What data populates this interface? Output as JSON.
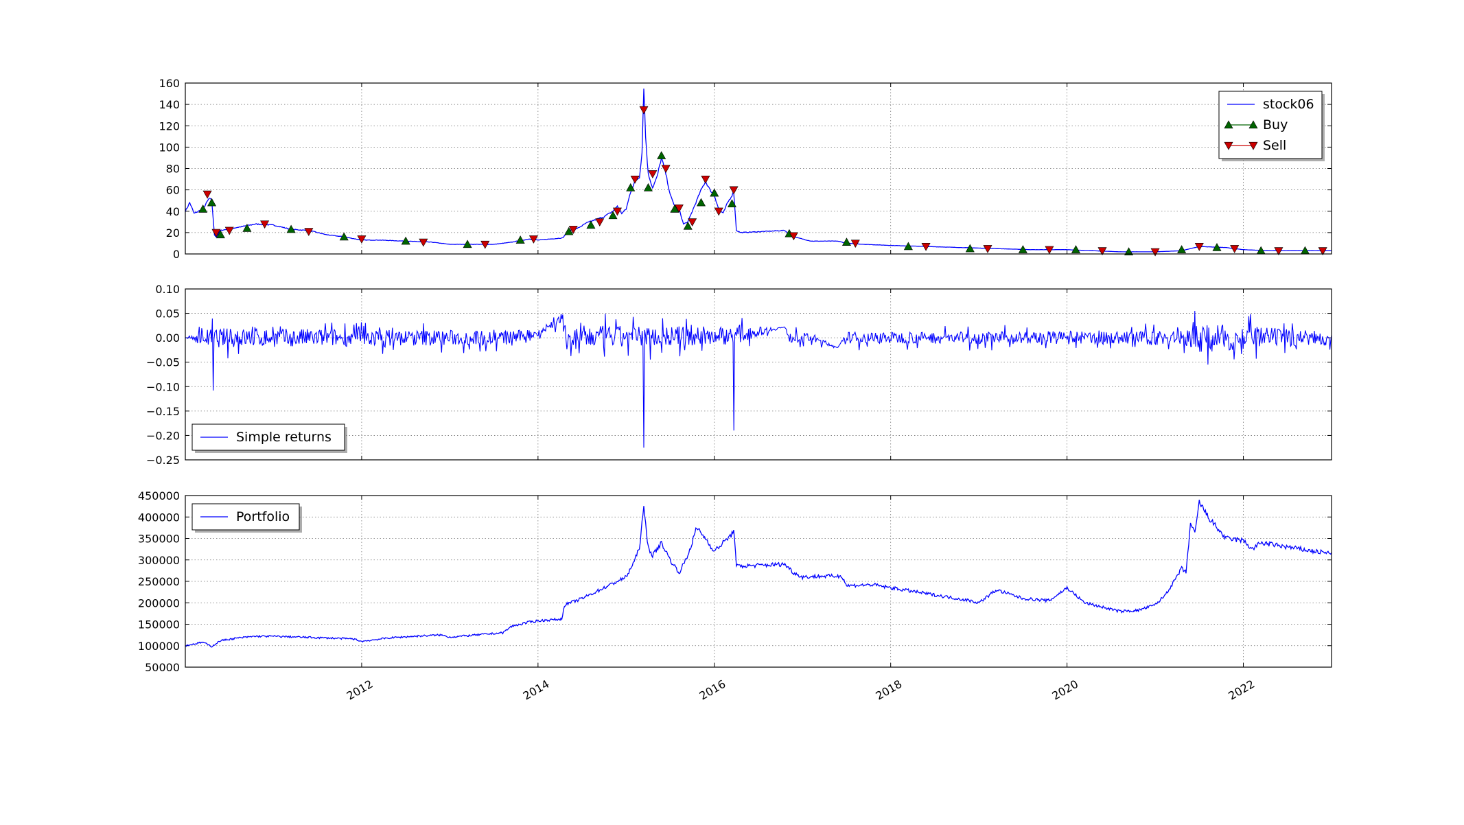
{
  "chart_data": [
    {
      "type": "line",
      "x_unit": "year",
      "xlim": [
        2010.0,
        2023.0
      ],
      "ylim": [
        0,
        160
      ],
      "yticks": [
        0,
        20,
        40,
        60,
        80,
        100,
        120,
        140,
        160
      ],
      "ytick_labels": [
        "0",
        "20",
        "40",
        "60",
        "80",
        "100",
        "120",
        "140",
        "160"
      ],
      "grid": true,
      "legend_position": "top-right",
      "series": [
        {
          "name": "stock06",
          "color": "#0000ff",
          "x": [
            2010.0,
            2010.05,
            2010.1,
            2010.2,
            2010.27,
            2010.3,
            2010.33,
            2010.35,
            2010.4,
            2010.6,
            2010.8,
            2011.0,
            2011.2,
            2011.4,
            2011.6,
            2011.8,
            2012.0,
            2012.2,
            2012.5,
            2012.8,
            2013.0,
            2013.3,
            2013.5,
            2013.7,
            2013.9,
            2014.0,
            2014.28,
            2014.35,
            2014.45,
            2014.55,
            2014.65,
            2014.75,
            2014.85,
            2014.9,
            2014.95,
            2015.0,
            2015.05,
            2015.1,
            2015.15,
            2015.18,
            2015.2,
            2015.22,
            2015.25,
            2015.3,
            2015.35,
            2015.4,
            2015.45,
            2015.5,
            2015.55,
            2015.6,
            2015.65,
            2015.7,
            2015.75,
            2015.8,
            2015.85,
            2015.9,
            2015.95,
            2016.0,
            2016.05,
            2016.1,
            2016.15,
            2016.18,
            2016.22,
            2016.25,
            2016.3,
            2016.8,
            2016.85,
            2016.95,
            2017.1,
            2017.4,
            2017.5,
            2017.7,
            2018.0,
            2018.4,
            2018.8,
            2019.2,
            2019.6,
            2020.0,
            2020.3,
            2020.6,
            2021.0,
            2021.3,
            2021.5,
            2021.8,
            2022.0,
            2022.3,
            2022.6,
            2023.0
          ],
          "values": [
            40,
            48,
            38,
            42,
            52,
            50,
            18,
            16,
            22,
            25,
            28,
            27,
            23,
            22,
            18,
            16,
            13,
            13,
            12,
            11,
            9,
            9,
            9,
            11,
            14,
            13,
            15,
            22,
            24,
            29,
            32,
            35,
            40,
            45,
            38,
            42,
            58,
            68,
            72,
            95,
            157,
            110,
            75,
            62,
            72,
            90,
            75,
            55,
            45,
            42,
            28,
            30,
            40,
            50,
            60,
            68,
            60,
            55,
            42,
            38,
            48,
            52,
            58,
            22,
            20,
            22,
            18,
            15,
            12,
            12,
            10,
            9,
            8,
            7,
            6,
            5,
            4,
            4,
            3,
            2,
            2,
            3,
            7,
            6,
            4,
            3,
            3,
            3
          ]
        },
        {
          "name": "Buy",
          "color": "#006400",
          "marker": "triangle-up",
          "x": [
            2010.2,
            2010.3,
            2010.4,
            2010.7,
            2011.2,
            2011.8,
            2012.5,
            2013.2,
            2013.8,
            2014.35,
            2014.6,
            2014.85,
            2015.05,
            2015.25,
            2015.4,
            2015.55,
            2015.7,
            2015.85,
            2016.0,
            2016.2,
            2016.85,
            2017.5,
            2018.2,
            2018.9,
            2019.5,
            2020.1,
            2020.7,
            2021.3,
            2021.7,
            2022.2,
            2022.7
          ],
          "values": [
            42,
            48,
            18,
            24,
            23,
            16,
            12,
            9,
            13,
            21,
            27,
            36,
            62,
            62,
            92,
            42,
            26,
            48,
            57,
            47,
            19,
            11,
            7,
            5,
            4,
            4,
            2,
            4,
            6,
            3,
            3
          ]
        },
        {
          "name": "Sell",
          "color": "#cc0000",
          "marker": "triangle-down",
          "x": [
            2010.25,
            2010.35,
            2010.5,
            2010.9,
            2011.4,
            2012.0,
            2012.7,
            2013.4,
            2013.95,
            2014.4,
            2014.7,
            2014.9,
            2015.1,
            2015.2,
            2015.3,
            2015.45,
            2015.6,
            2015.75,
            2015.9,
            2016.05,
            2016.22,
            2016.9,
            2017.6,
            2018.4,
            2019.1,
            2019.8,
            2020.4,
            2021.0,
            2021.5,
            2021.9,
            2022.4,
            2022.9
          ],
          "values": [
            56,
            20,
            22,
            28,
            21,
            14,
            11,
            9,
            14,
            23,
            30,
            40,
            70,
            135,
            75,
            80,
            43,
            30,
            70,
            40,
            60,
            17,
            10,
            7,
            5,
            4,
            3,
            2,
            7,
            5,
            3,
            3
          ]
        }
      ]
    },
    {
      "type": "line",
      "x_unit": "year",
      "xlim": [
        2010.0,
        2023.0
      ],
      "ylim": [
        -0.25,
        0.1
      ],
      "yticks": [
        -0.25,
        -0.2,
        -0.15,
        -0.1,
        -0.05,
        0.0,
        0.05,
        0.1
      ],
      "ytick_labels": [
        "−0.25",
        "−0.20",
        "−0.15",
        "−0.10",
        "−0.05",
        "0.00",
        "0.05",
        "0.10"
      ],
      "grid": true,
      "legend_position": "lower-left",
      "series": [
        {
          "name": "Simple returns",
          "color": "#0000ff",
          "spikes": [
            {
              "x": 2010.32,
              "value": -0.108
            },
            {
              "x": 2015.2,
              "value": -0.225
            },
            {
              "x": 2016.22,
              "value": -0.19
            },
            {
              "x": 2021.45,
              "value": 0.055
            },
            {
              "x": 2021.6,
              "value": -0.055
            }
          ],
          "x": [
            2010.0,
            2010.15,
            2010.3,
            2013.7,
            2014.0,
            2014.28,
            2014.3,
            2016.25,
            2016.8,
            2016.85,
            2017.1,
            2017.4,
            2017.5,
            2019.2,
            2020.0,
            2020.3,
            2021.3,
            2021.5,
            2023.0
          ],
          "amplitude": [
            0.0,
            0.012,
            0.02,
            0.015,
            0.008,
            0.012,
            0.025,
            0.018,
            0.0,
            0.01,
            0.01,
            0.0,
            0.012,
            0.012,
            0.014,
            0.012,
            0.015,
            0.03,
            0.012
          ],
          "values": [
            0.0,
            0.0,
            0.0,
            0.0,
            0.01,
            0.04,
            0.0,
            0.005,
            0.022,
            0.0,
            0.0,
            -0.02,
            0.0,
            0.0,
            0.0,
            0.0,
            0.0,
            0.0,
            0.0
          ]
        }
      ]
    },
    {
      "type": "line",
      "x_unit": "year",
      "xlim": [
        2010.0,
        2023.0
      ],
      "ylim": [
        50000,
        450000
      ],
      "yticks": [
        50000,
        100000,
        150000,
        200000,
        250000,
        300000,
        350000,
        400000,
        450000
      ],
      "ytick_labels": [
        "50000",
        "100000",
        "150000",
        "200000",
        "250000",
        "300000",
        "350000",
        "400000",
        "450000"
      ],
      "grid": true,
      "legend_position": "top-left",
      "xticks": [
        2012,
        2014,
        2016,
        2018,
        2020,
        2022
      ],
      "xtick_labels": [
        "2012",
        "2014",
        "2016",
        "2018",
        "2020",
        "2022"
      ],
      "series": [
        {
          "name": "Portfolio",
          "color": "#0000ff",
          "x": [
            2010.0,
            2010.2,
            2010.3,
            2010.4,
            2010.6,
            2010.8,
            2011.0,
            2011.3,
            2011.6,
            2011.9,
            2012.0,
            2012.3,
            2012.6,
            2012.9,
            2013.0,
            2013.3,
            2013.6,
            2013.7,
            2013.9,
            2014.0,
            2014.27,
            2014.3,
            2014.5,
            2014.7,
            2014.9,
            2015.0,
            2015.1,
            2015.15,
            2015.2,
            2015.25,
            2015.3,
            2015.4,
            2015.5,
            2015.6,
            2015.7,
            2015.8,
            2015.9,
            2016.0,
            2016.1,
            2016.2,
            2016.22,
            2016.25,
            2016.8,
            2016.9,
            2017.0,
            2017.2,
            2017.45,
            2017.5,
            2017.8,
            2018.0,
            2018.3,
            2018.6,
            2018.9,
            2019.0,
            2019.2,
            2019.5,
            2019.8,
            2020.0,
            2020.2,
            2020.4,
            2020.6,
            2020.8,
            2021.0,
            2021.1,
            2021.2,
            2021.3,
            2021.35,
            2021.4,
            2021.45,
            2021.5,
            2021.6,
            2021.8,
            2022.0,
            2022.1,
            2022.2,
            2022.5,
            2022.8,
            2023.0
          ],
          "values": [
            100000,
            108000,
            98000,
            112000,
            118000,
            122000,
            122000,
            120000,
            118000,
            116000,
            110000,
            118000,
            122000,
            125000,
            120000,
            125000,
            130000,
            145000,
            155000,
            158000,
            162000,
            195000,
            210000,
            230000,
            250000,
            260000,
            300000,
            330000,
            420000,
            330000,
            310000,
            340000,
            300000,
            270000,
            310000,
            375000,
            350000,
            320000,
            340000,
            360000,
            375000,
            285000,
            290000,
            270000,
            260000,
            262000,
            262000,
            240000,
            242000,
            235000,
            225000,
            215000,
            205000,
            200000,
            230000,
            210000,
            205000,
            235000,
            200000,
            190000,
            180000,
            182000,
            195000,
            215000,
            245000,
            280000,
            270000,
            385000,
            360000,
            435000,
            400000,
            350000,
            345000,
            325000,
            340000,
            330000,
            320000,
            315000
          ]
        }
      ]
    }
  ]
}
